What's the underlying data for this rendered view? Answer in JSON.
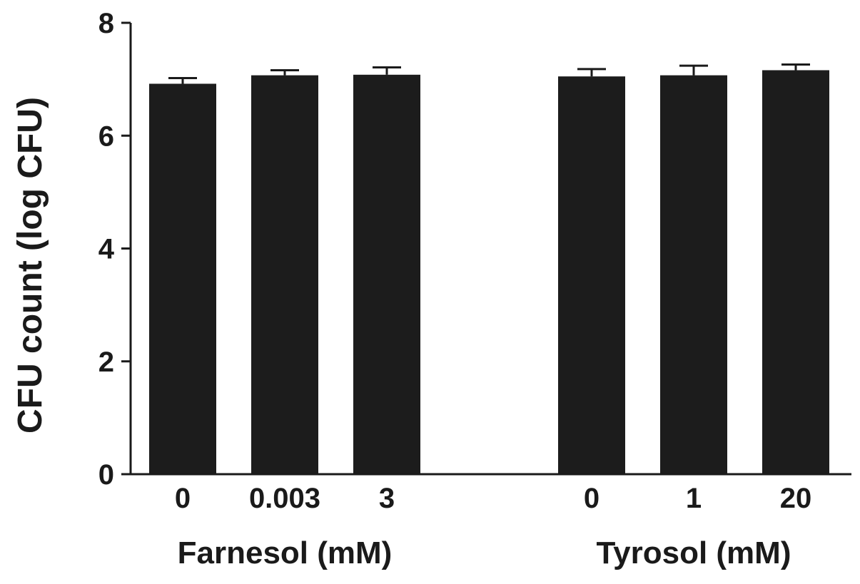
{
  "chart_data": {
    "type": "bar",
    "ylabel": "CFU count (log CFU)",
    "ylim": [
      0,
      8
    ],
    "yticks": [
      0,
      2,
      4,
      6,
      8
    ],
    "grid": false,
    "bar_color": "#1c1c1c",
    "groups": [
      {
        "label": "Farnesol (mM)",
        "categories": [
          "0",
          "0.003",
          "3"
        ],
        "values": [
          6.92,
          7.07,
          7.08
        ],
        "errors": [
          0.1,
          0.09,
          0.13
        ]
      },
      {
        "label": "Tyrosol (mM)",
        "categories": [
          "0",
          "1",
          "20"
        ],
        "values": [
          7.05,
          7.07,
          7.16
        ],
        "errors": [
          0.13,
          0.17,
          0.1
        ]
      }
    ]
  }
}
